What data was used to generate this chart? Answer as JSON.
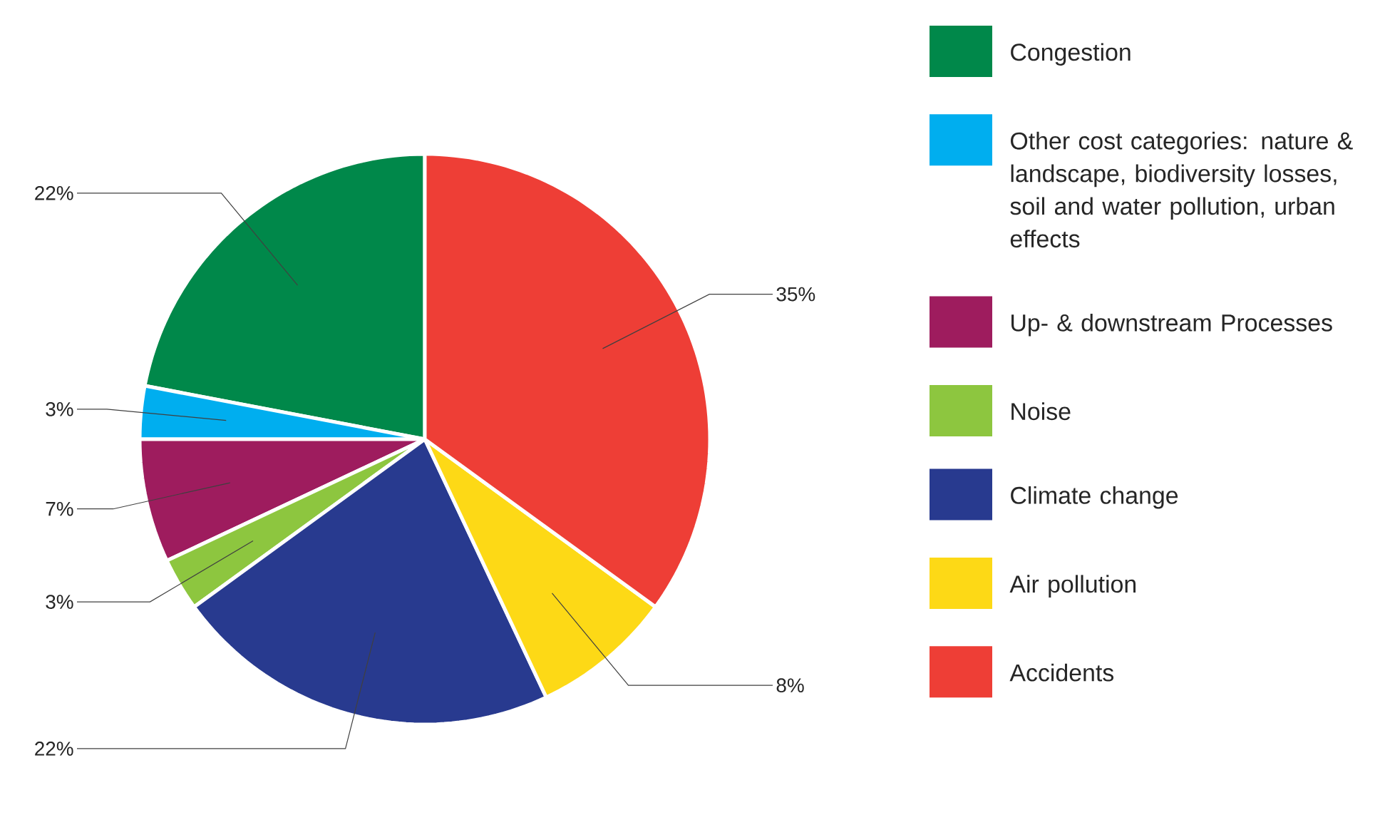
{
  "chart_data": {
    "type": "pie",
    "categories": [
      "Congestion",
      "Other cost categories: nature & landscape, biodiversity losses, soil and water pollution, urban effects",
      "Up- & downstream Processes",
      "Noise",
      "Climate change",
      "Air pollution",
      "Accidents"
    ],
    "values": [
      22,
      3,
      7,
      3,
      22,
      8,
      35
    ],
    "value_labels": [
      "22%",
      "3%",
      "7%",
      "3%",
      "22%",
      "8%",
      "35%"
    ],
    "colors": [
      "#00884a",
      "#00aeef",
      "#9e1c5e",
      "#8dc63f",
      "#283a8f",
      "#fdd916",
      "#ee3e36"
    ],
    "legend": "right"
  }
}
